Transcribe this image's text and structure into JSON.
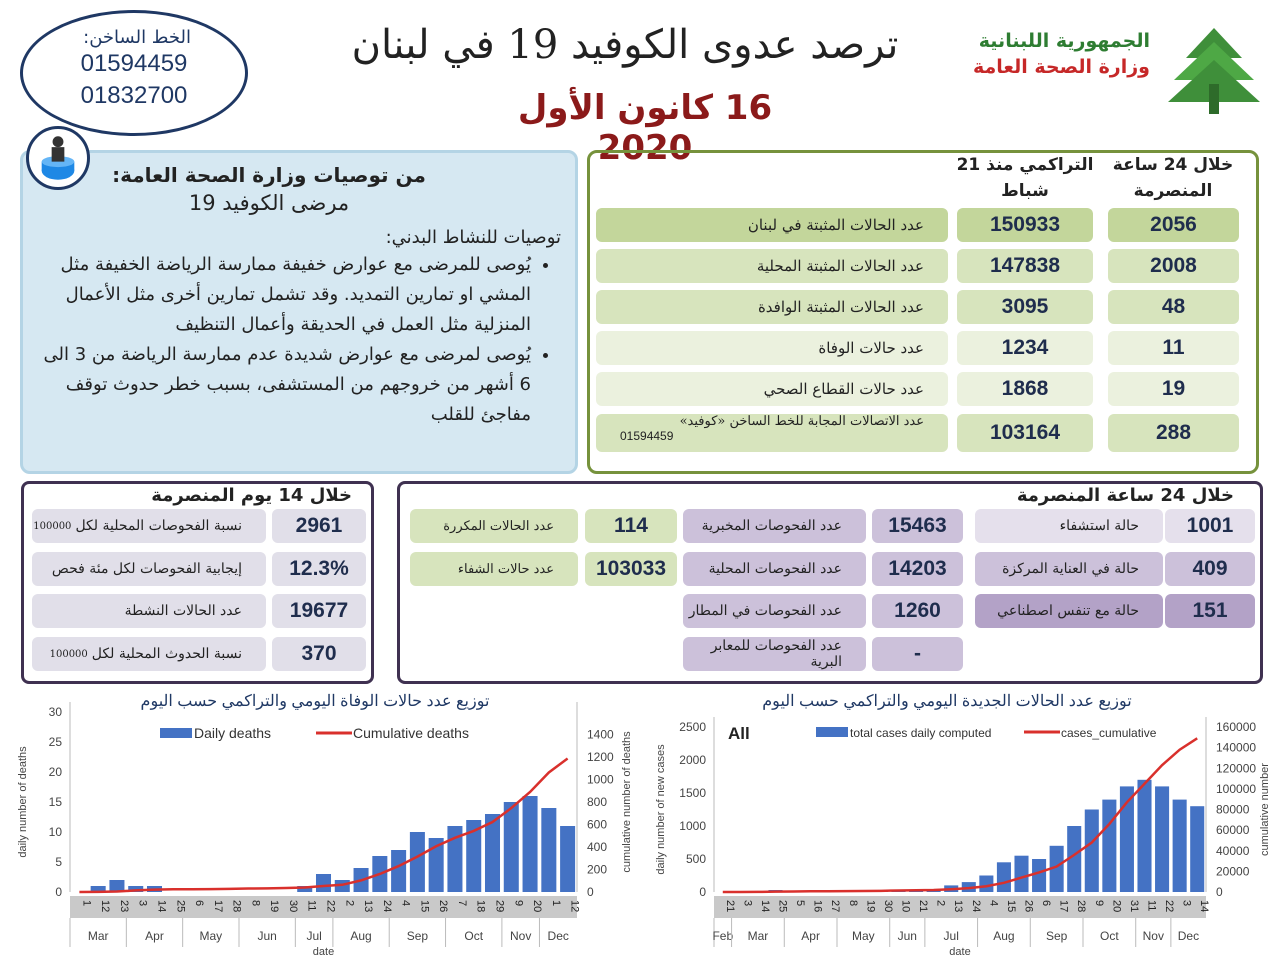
{
  "hotline": {
    "label": "الخط الساخن:",
    "numbers": [
      "01594459",
      "01832700"
    ]
  },
  "header": {
    "title": "ترصد عدوى الكوفيد 19 في لبنان",
    "date": "16 كانون الأول 2020",
    "republic": "الجمهورية اللبنانية",
    "ministry": "وزارة الصحة العامة",
    "logo": "cedar-tree-logo"
  },
  "recommendations": {
    "title": "من توصيات وزارة الصحة العامة:",
    "subtitle": "مرضى الكوفيد 19",
    "section": "توصيات للنشاط البدني:",
    "bullets": [
      "يُوصى للمرضى مع عوارض خفيفة ممارسة الرياضة الخفيفة مثل المشي او تمارين التمديد. وقد تشمل تمارين أخرى مثل الأعمال المنزلية مثل العمل في الحديقة وأعمال التنظيف",
      "يُوصى لمرضى مع عوارض شديدة عدم ممارسة الرياضة من 3 الى 6 أشهر من خروجهم من المستشفى، بسبب خطر حدوث توقف مفاجئ للقلب"
    ]
  },
  "summary": {
    "col_daily": "خلال 24 ساعة المنصرمة",
    "col_cumulative": "التراكمي منذ 21 شباط",
    "rows": [
      {
        "label": "عدد الحالات المثبتة في لبنان",
        "cumulative": "150933",
        "daily": "2056"
      },
      {
        "label": "عدد الحالات المثبتة المحلية",
        "cumulative": "147838",
        "daily": "2008"
      },
      {
        "label": "عدد الحالات المثبتة الوافدة",
        "cumulative": "3095",
        "daily": "48"
      },
      {
        "label": "عدد حالات الوفاة",
        "cumulative": "1234",
        "daily": "11"
      },
      {
        "label": "عدد حالات القطاع الصحي",
        "cumulative": "1868",
        "daily": "19"
      },
      {
        "label": "عدد الاتصالات المجابة  للخط الساخن «كوفيد»",
        "sublabel": "01594459",
        "cumulative": "103164",
        "daily": "288"
      }
    ]
  },
  "fourteen_days": {
    "title": "خلال 14 يوم المنصرمة",
    "rows": [
      {
        "label": "نسبة الفحوصات  المحلية لكل",
        "unit": "100000",
        "value": "2961"
      },
      {
        "label": "إيجابية الفحوصات لكل مئة فحص",
        "value": "12.3%"
      },
      {
        "label": "عدد الحالات النشطة",
        "value": "19677"
      },
      {
        "label": "نسبة الحدوث المحلية لكل",
        "unit": "100000",
        "value": "370"
      }
    ]
  },
  "last_24h": {
    "title": "خلال 24 ساعة المنصرمة",
    "green": [
      {
        "label": "عدد الحالات المكررة",
        "value": "114"
      },
      {
        "label": "عدد حالات الشفاء",
        "value": "103033"
      }
    ],
    "tests": [
      {
        "label": "عدد الفحوصات المخبرية",
        "value": "15463"
      },
      {
        "label": "عدد الفحوصات المحلية",
        "value": "14203"
      },
      {
        "label": "عدد الفحوصات في المطار",
        "value": "1260"
      },
      {
        "label": "عدد الفحوصات للمعابر البرية",
        "value": "-"
      }
    ],
    "hospital": [
      {
        "label": "حالة استشفاء",
        "value": "1001"
      },
      {
        "label": "حالة في العناية المركزة",
        "value": "409"
      },
      {
        "label": "حالة مع تنفس اصطناعي",
        "value": "151"
      }
    ]
  },
  "chart_data": [
    {
      "type": "bar+line",
      "title": "توزيع عدد حالات  الوفاة اليومي والتراكمي حسب اليوم",
      "xlabel": "date",
      "ylabel": "daily number of deaths",
      "y2label": "cumulative number of deaths",
      "ylim": [
        0,
        30
      ],
      "y2lim": [
        0,
        1500
      ],
      "yticks": [
        0,
        5,
        10,
        15,
        20,
        25,
        30
      ],
      "y2ticks": [
        0,
        200,
        400,
        600,
        800,
        1000,
        1200,
        1400
      ],
      "legend": "top",
      "colors": {
        "bars": "#4472c4",
        "line": "#d9302c"
      },
      "x": [
        "2020-03-01",
        "2020-03-12",
        "2020-03-23",
        "2020-04-03",
        "2020-04-14",
        "2020-04-25",
        "2020-05-06",
        "2020-05-17",
        "2020-05-28",
        "2020-06-08",
        "2020-06-19",
        "2020-06-30",
        "2020-07-11",
        "2020-07-22",
        "2020-08-02",
        "2020-08-13",
        "2020-08-24",
        "2020-09-04",
        "2020-09-15",
        "2020-09-26",
        "2020-10-07",
        "2020-10-18",
        "2020-10-29",
        "2020-11-09",
        "2020-11-20",
        "2020-12-01",
        "2020-12-12"
      ],
      "series": [
        {
          "name": "Daily deaths",
          "type": "bar",
          "values": [
            0,
            1,
            2,
            1,
            1,
            0,
            0,
            0,
            0,
            0,
            0,
            0,
            1,
            3,
            2,
            4,
            6,
            7,
            10,
            9,
            11,
            12,
            13,
            15,
            16,
            14,
            11
          ]
        },
        {
          "name": "Cumulative deaths",
          "type": "line",
          "axis": "right",
          "values": [
            0,
            1,
            4,
            14,
            21,
            24,
            24,
            26,
            28,
            31,
            32,
            35,
            40,
            53,
            64,
            103,
            160,
            230,
            314,
            406,
            481,
            542,
            621,
            745,
            888,
            1061,
            1185
          ]
        }
      ]
    },
    {
      "type": "bar+line",
      "title": "توزيع عدد الحالات الجديدة اليومي والتراكمي حسب اليوم",
      "annotation": "All",
      "xlabel": "date",
      "ylabel": "daily number of new cases",
      "y2label": "cumulative number",
      "ylim": [
        0,
        2500
      ],
      "y2lim": [
        0,
        160000
      ],
      "yticks": [
        0,
        500,
        1000,
        1500,
        2000,
        2500
      ],
      "y2ticks": [
        0,
        20000,
        40000,
        60000,
        80000,
        100000,
        120000,
        140000,
        160000
      ],
      "legend": "top",
      "colors": {
        "bars": "#4472c4",
        "line": "#d9302c"
      },
      "x": [
        "2020-02-21",
        "2020-03-03",
        "2020-03-14",
        "2020-03-25",
        "2020-04-05",
        "2020-04-16",
        "2020-04-27",
        "2020-05-08",
        "2020-05-19",
        "2020-05-30",
        "2020-06-10",
        "2020-06-21",
        "2020-07-02",
        "2020-07-13",
        "2020-07-24",
        "2020-08-04",
        "2020-08-15",
        "2020-08-26",
        "2020-09-06",
        "2020-09-17",
        "2020-09-28",
        "2020-10-09",
        "2020-10-20",
        "2020-10-31",
        "2020-11-11",
        "2020-11-22",
        "2020-12-03",
        "2020-12-14"
      ],
      "series": [
        {
          "name": "total cases daily computed",
          "type": "bar",
          "values": [
            0,
            2,
            10,
            30,
            20,
            5,
            3,
            10,
            30,
            15,
            20,
            15,
            40,
            100,
            150,
            250,
            450,
            550,
            500,
            700,
            1000,
            1250,
            1400,
            1600,
            1700,
            1600,
            1400,
            1300
          ]
        },
        {
          "name": "cases_cumulative",
          "type": "line",
          "axis": "right",
          "values": [
            0,
            13,
            93,
            368,
            508,
            673,
            721,
            870,
            954,
            1140,
            1446,
            1740,
            1946,
            2700,
            3750,
            5600,
            8900,
            14000,
            19000,
            24700,
            36000,
            48000,
            66000,
            87000,
            105000,
            123000,
            138000,
            149000
          ]
        }
      ]
    }
  ]
}
